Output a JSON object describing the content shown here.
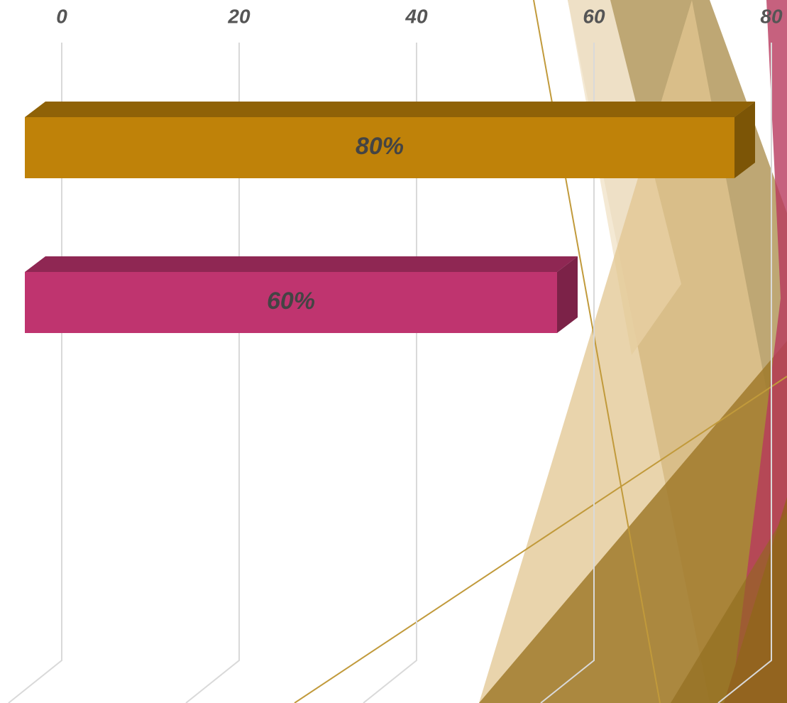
{
  "chart_data": {
    "type": "bar3d_horizontal",
    "values": [
      80,
      60
    ],
    "value_labels": [
      "80%",
      "60%"
    ],
    "colors": [
      "#bf8209",
      "#bf346f"
    ],
    "xlim": [
      0,
      80
    ],
    "xticks": [
      0,
      20,
      40,
      60,
      80
    ],
    "grid": true
  }
}
